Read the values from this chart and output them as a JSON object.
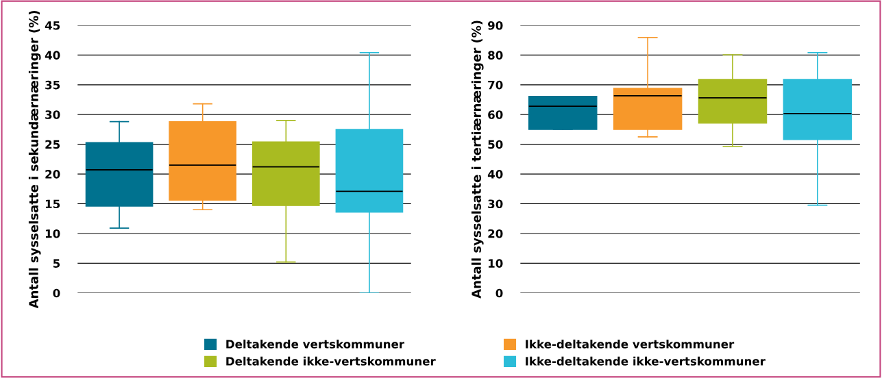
{
  "chart_data": [
    {
      "type": "box",
      "ylabel": "Antall sysselsatte i sekundærnæringer (%)",
      "categories": [
        null,
        null,
        null,
        null
      ],
      "ylim": [
        0,
        45
      ],
      "yticks": [
        0,
        5,
        10,
        15,
        20,
        25,
        30,
        35,
        40,
        45
      ],
      "grid": "y",
      "legend": "bottom",
      "series": [
        {
          "name": "Deltakende vertskommuner",
          "color": "#00728f",
          "boxes": [
            {
              "low": 10.9,
              "q1": 14.6,
              "median": 20.7,
              "q3": 25.3,
              "high": 28.8
            },
            null,
            null,
            null
          ]
        },
        {
          "name": "Ikke-deltakende vertskommuner",
          "color": "#f7982a",
          "boxes": [
            null,
            {
              "low": 14.0,
              "q1": 15.6,
              "median": 21.5,
              "q3": 28.8,
              "high": 31.8
            },
            null,
            null
          ]
        },
        {
          "name": "Deltakende ikke-vertskommuner",
          "color": "#a9bb21",
          "boxes": [
            null,
            null,
            {
              "low": 5.2,
              "q1": 14.7,
              "median": 21.2,
              "q3": 25.4,
              "high": 29.0
            },
            null
          ]
        },
        {
          "name": "Ikke-deltakende ikke-vertskommuner",
          "color": "#2bbcd8",
          "boxes": [
            null,
            null,
            null,
            {
              "low": 0,
              "q1": 13.6,
              "median": 17.1,
              "q3": 27.5,
              "high": 40.4
            }
          ]
        }
      ]
    },
    {
      "type": "box",
      "ylabel": "Antall sysselsatte i tertiærnæringer (%)",
      "categories": [
        null,
        null,
        null,
        null
      ],
      "ylim": [
        0,
        90
      ],
      "yticks": [
        0,
        10,
        20,
        30,
        40,
        50,
        60,
        70,
        80,
        90
      ],
      "grid": "y",
      "legend": "bottom",
      "series": [
        {
          "name": "Deltakende vertskommuner",
          "color": "#00728f",
          "boxes": [
            {
              "low": 55.0,
              "q1": 55.0,
              "median": 62.8,
              "q3": 66.1,
              "high": 66.1
            },
            null,
            null,
            null
          ]
        },
        {
          "name": "Ikke-deltakende vertskommuner",
          "color": "#f7982a",
          "boxes": [
            null,
            {
              "low": 52.5,
              "q1": 55.0,
              "median": 66.3,
              "q3": 68.8,
              "high": 85.9
            },
            null,
            null
          ]
        },
        {
          "name": "Deltakende ikke-vertskommuner",
          "color": "#a9bb21",
          "boxes": [
            null,
            null,
            {
              "low": 49.3,
              "q1": 57.1,
              "median": 65.6,
              "q3": 71.8,
              "high": 80.1
            },
            null
          ]
        },
        {
          "name": "Ikke-deltakende ikke-vertskommuner",
          "color": "#2bbcd8",
          "boxes": [
            null,
            null,
            null,
            {
              "low": 29.5,
              "q1": 51.6,
              "median": 60.3,
              "q3": 71.8,
              "high": 80.8
            }
          ]
        }
      ]
    }
  ]
}
